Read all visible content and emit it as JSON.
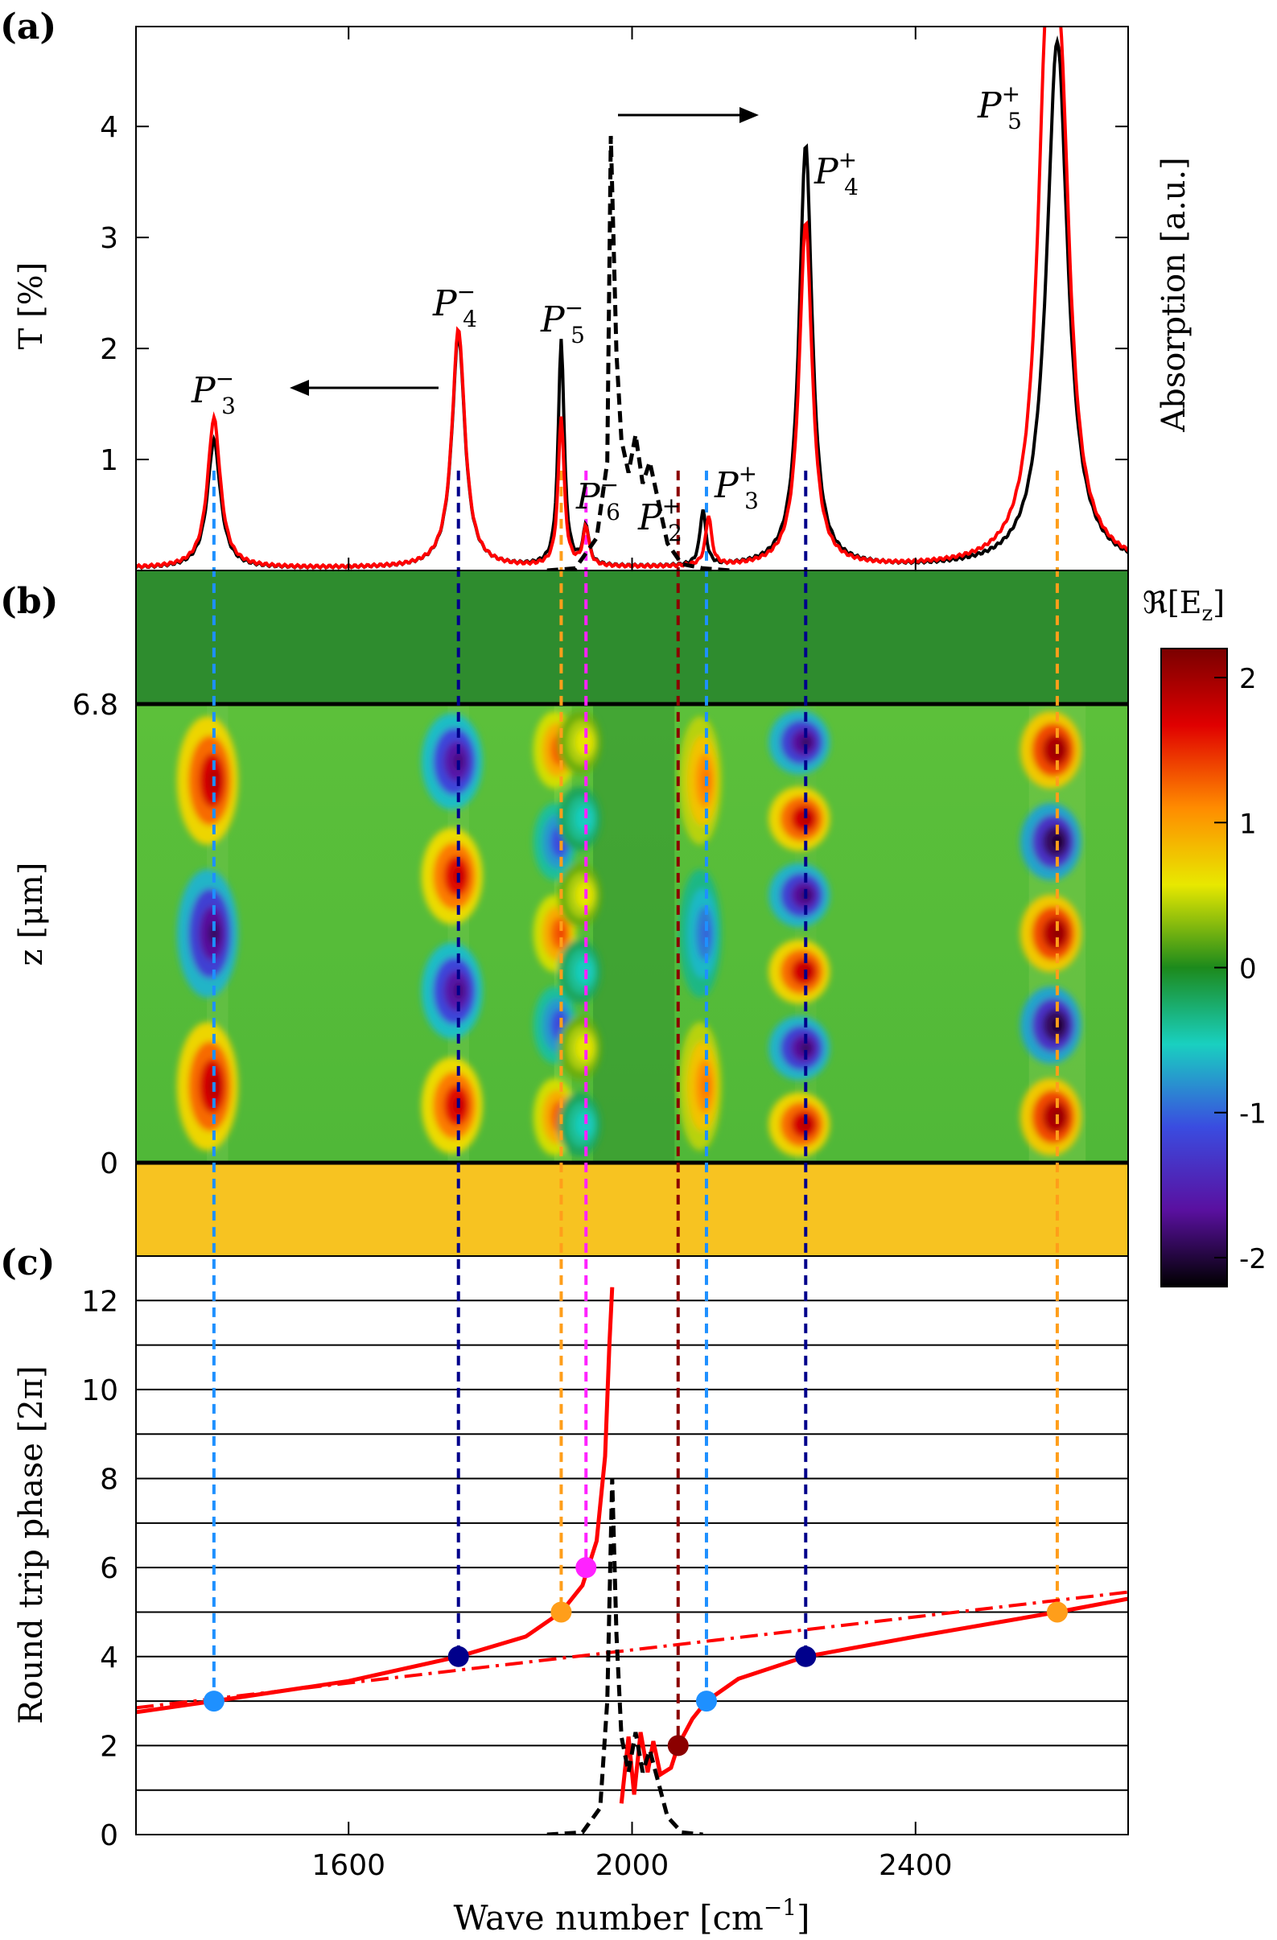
{
  "chart_data": [
    {
      "panel": "(a)",
      "type": "line",
      "xlabel": "",
      "ylabel": "T [%]",
      "y2label": "Absorption [a.u.]",
      "xlim": [
        1300,
        2700
      ],
      "ylim": [
        0,
        4.9
      ],
      "yticks": [
        "1",
        "2",
        "3",
        "4"
      ],
      "grid": false,
      "series": [
        {
          "color": "#000000",
          "style": "solid",
          "peaks": [
            {
              "x": 1410,
              "y": 1.15
            },
            {
              "x": 1755,
              "y": 2.1
            },
            {
              "x": 1900,
              "y": 2.05
            },
            {
              "x": 1935,
              "y": 0.35
            },
            {
              "x": 2100,
              "y": 0.5
            },
            {
              "x": 2245,
              "y": 3.8
            },
            {
              "x": 2600,
              "y": 4.75
            }
          ]
        },
        {
          "color": "#ff0000",
          "style": "solid",
          "peaks": [
            {
              "x": 1410,
              "y": 1.35
            },
            {
              "x": 1755,
              "y": 2.15
            },
            {
              "x": 1900,
              "y": 1.35
            },
            {
              "x": 1935,
              "y": 0.35
            },
            {
              "x": 2108,
              "y": 0.45
            },
            {
              "x": 2245,
              "y": 3.1
            },
            {
              "x": 2585,
              "y": 3.9
            },
            {
              "x": 2605,
              "y": 3.35
            }
          ]
        },
        {
          "color": "#000000",
          "style": "dashed",
          "axis": "right",
          "points": [
            [
              1880,
              0.0
            ],
            [
              1920,
              0.02
            ],
            [
              1950,
              0.3
            ],
            [
              1965,
              1.0
            ],
            [
              1970,
              4.0
            ],
            [
              1978,
              2.0
            ],
            [
              1985,
              1.2
            ],
            [
              1995,
              0.9
            ],
            [
              2005,
              1.25
            ],
            [
              2015,
              0.8
            ],
            [
              2025,
              1.0
            ],
            [
              2035,
              0.7
            ],
            [
              2050,
              0.25
            ],
            [
              2070,
              0.06
            ],
            [
              2100,
              0.02
            ],
            [
              2140,
              0.0
            ]
          ]
        }
      ],
      "annotations": [
        {
          "label": "P",
          "sup": "−",
          "sub": "3",
          "x": 1410
        },
        {
          "label": "P",
          "sup": "−",
          "sub": "4",
          "x": 1755
        },
        {
          "label": "P",
          "sup": "−",
          "sub": "5",
          "x": 1900
        },
        {
          "label": "P",
          "sup": "−",
          "sub": "6",
          "x": 1935
        },
        {
          "label": "P",
          "sup": "+",
          "sub": "2",
          "x": 2065
        },
        {
          "label": "P",
          "sup": "+",
          "sub": "3",
          "x": 2105
        },
        {
          "label": "P",
          "sup": "+",
          "sub": "4",
          "x": 2245
        },
        {
          "label": "P",
          "sup": "+",
          "sub": "5",
          "x": 2600
        }
      ]
    },
    {
      "panel": "(b)",
      "type": "heatmap",
      "ylabel": "z [μm]",
      "yticks": [
        "6.8",
        "0"
      ],
      "colorbar_label": "ℜ[E",
      "colorbar_label_sub": "z",
      "colorbar_label_end": "]",
      "colorbar_ticks": [
        "2",
        "1",
        "0",
        "-1",
        "-2"
      ],
      "colorbar_range": [
        -2.2,
        2.2
      ],
      "lobes": [
        {
          "x": 1410,
          "values": [
            1.9,
            -1.9,
            1.9
          ]
        },
        {
          "x": 1755,
          "values": [
            -1.8,
            1.8,
            -1.8,
            1.8
          ]
        },
        {
          "x": 1900,
          "values": [
            1.4,
            -1.2,
            1.4,
            -1.2,
            1.4
          ]
        },
        {
          "x": 1935,
          "values": [
            0.6,
            -0.6,
            0.6,
            -0.6,
            0.6,
            -0.6
          ]
        },
        {
          "x": 2105,
          "values": [
            1.2,
            -1.0,
            1.2
          ]
        },
        {
          "x": 2245,
          "values": [
            -1.9,
            1.9,
            -1.9,
            1.9,
            -1.9,
            1.9
          ]
        },
        {
          "x": 2600,
          "values": [
            2.1,
            -2.1,
            2.1,
            -2.1,
            2.1
          ]
        }
      ]
    },
    {
      "panel": "(c)",
      "type": "line",
      "xlabel": "Wave number [cm",
      "xlabel_sup": "−1",
      "xlabel_end": "]",
      "ylabel": "Round trip phase [2π]",
      "xlim": [
        1300,
        2700
      ],
      "ylim": [
        0,
        13
      ],
      "xticks": [
        {
          "value": 1600,
          "label": "1600"
        },
        {
          "value": 2000,
          "label": "2000"
        },
        {
          "value": 2400,
          "label": "2400"
        }
      ],
      "yticks": [
        "0",
        "2",
        "4",
        "6",
        "8",
        "10",
        "12"
      ],
      "hlines": [
        1,
        2,
        3,
        4,
        5,
        6,
        7,
        8,
        9,
        10,
        11,
        12
      ],
      "series": [
        {
          "color": "#ff0000",
          "style": "solid",
          "points_left": [
            [
              1300,
              2.75
            ],
            [
              1410,
              3.0
            ],
            [
              1600,
              3.45
            ],
            [
              1755,
              4.0
            ],
            [
              1850,
              4.45
            ],
            [
              1900,
              5.0
            ],
            [
              1930,
              5.6
            ],
            [
              1950,
              6.6
            ],
            [
              1962,
              8.5
            ],
            [
              1968,
              11.0
            ],
            [
              1972,
              12.3
            ]
          ],
          "points_right": [
            [
              1985,
              0.7
            ],
            [
              1995,
              2.2
            ],
            [
              2003,
              0.9
            ],
            [
              2012,
              2.3
            ],
            [
              2022,
              1.4
            ],
            [
              2030,
              2.1
            ],
            [
              2040,
              1.35
            ],
            [
              2055,
              1.5
            ],
            [
              2065,
              2.0
            ],
            [
              2085,
              2.6
            ],
            [
              2105,
              3.0
            ],
            [
              2150,
              3.5
            ],
            [
              2245,
              4.0
            ],
            [
              2400,
              4.45
            ],
            [
              2600,
              5.0
            ],
            [
              2700,
              5.3
            ]
          ]
        },
        {
          "color": "#ff0000",
          "style": "dashdot",
          "points": [
            [
              1300,
              2.85
            ],
            [
              2700,
              5.45
            ]
          ]
        },
        {
          "color": "#000000",
          "style": "dashed",
          "points": [
            [
              1880,
              0.0
            ],
            [
              1930,
              0.05
            ],
            [
              1955,
              0.6
            ],
            [
              1965,
              3.0
            ],
            [
              1972,
              8.0
            ],
            [
              1978,
              4.5
            ],
            [
              1985,
              2.2
            ],
            [
              1995,
              1.4
            ],
            [
              2005,
              2.3
            ],
            [
              2015,
              1.4
            ],
            [
              2025,
              1.9
            ],
            [
              2035,
              1.3
            ],
            [
              2050,
              0.4
            ],
            [
              2070,
              0.05
            ],
            [
              2100,
              0.0
            ]
          ]
        }
      ],
      "markers": [
        {
          "x": 1410,
          "y": 3,
          "color": "#1e90ff"
        },
        {
          "x": 1755,
          "y": 4,
          "color": "#00008b"
        },
        {
          "x": 1900,
          "y": 5,
          "color": "#ff9e1a"
        },
        {
          "x": 1935,
          "y": 6,
          "color": "#ff22ff"
        },
        {
          "x": 2065,
          "y": 2,
          "color": "#8b0000"
        },
        {
          "x": 2105,
          "y": 3,
          "color": "#1e90ff"
        },
        {
          "x": 2245,
          "y": 4,
          "color": "#00008b"
        },
        {
          "x": 2600,
          "y": 5,
          "color": "#ff9e1a"
        }
      ]
    }
  ],
  "guides": [
    {
      "x": 1410,
      "color": "#1e90ff"
    },
    {
      "x": 1755,
      "color": "#00008b"
    },
    {
      "x": 1900,
      "color": "#ff9e1a"
    },
    {
      "x": 1935,
      "color": "#ff22ff"
    },
    {
      "x": 2065,
      "color": "#8b0000"
    },
    {
      "x": 2105,
      "color": "#1e90ff"
    },
    {
      "x": 2245,
      "color": "#00008b"
    },
    {
      "x": 2600,
      "color": "#ff9e1a"
    }
  ],
  "panel_labels": [
    "(a)",
    "(b)",
    "(c)"
  ]
}
